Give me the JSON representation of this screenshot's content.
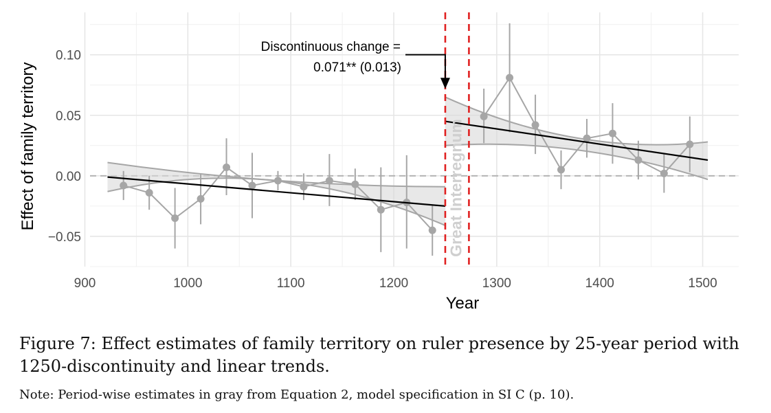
{
  "chart_data": {
    "type": "line",
    "xlabel": "Year",
    "ylabel": "Effect of family territory",
    "xlim": [
      905,
      1535
    ],
    "ylim": [
      -0.075,
      0.135
    ],
    "x_ticks": [
      900,
      1000,
      1100,
      1200,
      1300,
      1400,
      1500
    ],
    "x_tick_labels": [
      "900",
      "1000",
      "1100",
      "1200",
      "1300",
      "1400",
      "1500"
    ],
    "y_ticks": [
      -0.05,
      0.0,
      0.05,
      0.1
    ],
    "y_tick_labels": [
      "−0.05",
      "0.00",
      "0.05",
      "0.10"
    ],
    "grid": true,
    "zero_line": {
      "y": 0,
      "style": "dashed",
      "color": "#b3b3b3"
    },
    "period_estimates": {
      "color": "#a6a6a6",
      "points": [
        {
          "x": 937.5,
          "y": -0.008,
          "lo": -0.02,
          "hi": 0.004
        },
        {
          "x": 962.5,
          "y": -0.014,
          "lo": -0.028,
          "hi": 0.0
        },
        {
          "x": 987.5,
          "y": -0.035,
          "lo": -0.06,
          "hi": -0.01
        },
        {
          "x": 1012.5,
          "y": -0.019,
          "lo": -0.04,
          "hi": 0.002
        },
        {
          "x": 1037.5,
          "y": 0.007,
          "lo": -0.016,
          "hi": 0.031
        },
        {
          "x": 1062.5,
          "y": -0.008,
          "lo": -0.035,
          "hi": 0.019
        },
        {
          "x": 1087.5,
          "y": -0.004,
          "lo": -0.012,
          "hi": 0.004
        },
        {
          "x": 1112.5,
          "y": -0.009,
          "lo": -0.02,
          "hi": 0.002
        },
        {
          "x": 1137.5,
          "y": -0.004,
          "lo": -0.025,
          "hi": 0.018
        },
        {
          "x": 1162.5,
          "y": -0.007,
          "lo": -0.02,
          "hi": 0.006
        },
        {
          "x": 1187.5,
          "y": -0.028,
          "lo": -0.063,
          "hi": 0.007
        },
        {
          "x": 1212.5,
          "y": -0.022,
          "lo": -0.06,
          "hi": 0.017
        },
        {
          "x": 1237.5,
          "y": -0.045,
          "lo": -0.066,
          "hi": -0.024
        },
        {
          "x": 1287.5,
          "y": 0.049,
          "lo": 0.027,
          "hi": 0.072
        },
        {
          "x": 1312.5,
          "y": 0.081,
          "lo": 0.036,
          "hi": 0.126
        },
        {
          "x": 1337.5,
          "y": 0.042,
          "lo": 0.018,
          "hi": 0.067
        },
        {
          "x": 1362.5,
          "y": 0.005,
          "lo": -0.011,
          "hi": 0.021
        },
        {
          "x": 1387.5,
          "y": 0.031,
          "lo": 0.015,
          "hi": 0.047
        },
        {
          "x": 1412.5,
          "y": 0.035,
          "lo": 0.01,
          "hi": 0.06
        },
        {
          "x": 1437.5,
          "y": 0.013,
          "lo": -0.003,
          "hi": 0.029
        },
        {
          "x": 1462.5,
          "y": 0.002,
          "lo": -0.014,
          "hi": 0.018
        },
        {
          "x": 1487.5,
          "y": 0.026,
          "lo": 0.003,
          "hi": 0.049
        }
      ]
    },
    "trends": [
      {
        "x_start": 922,
        "x_end": 1250,
        "y_start": -0.001,
        "y_end": -0.025,
        "band": [
          {
            "x": 922,
            "lo": -0.013,
            "hi": 0.011
          },
          {
            "x": 1150,
            "lo": -0.013,
            "hi": -0.007
          },
          {
            "x": 1250,
            "lo": -0.041,
            "hi": -0.009
          }
        ]
      },
      {
        "x_start": 1250,
        "x_end": 1505,
        "y_start": 0.045,
        "y_end": 0.013,
        "band": [
          {
            "x": 1250,
            "lo": 0.025,
            "hi": 0.065
          },
          {
            "x": 1350,
            "lo": 0.024,
            "hi": 0.036
          },
          {
            "x": 1505,
            "lo": -0.003,
            "hi": 0.028
          }
        ]
      }
    ],
    "reference_lines": [
      {
        "x": 1250,
        "style": "dashed",
        "color": "#e02020"
      },
      {
        "x": 1273,
        "style": "dashed",
        "color": "#e02020"
      }
    ],
    "era_label": {
      "text": "Great Interregnum",
      "x": 1261.5,
      "y": -0.01
    },
    "annotation": {
      "line1": "Discontinuous change =",
      "line2": "0.071** (0.013)",
      "arrow_to": {
        "x": 1250,
        "y": 0.073
      },
      "corner": {
        "x": 1250,
        "y": 0.1
      }
    }
  },
  "caption": "Figure 7: Effect estimates of family territory on ruler presence by 25-year period with 1250-discontinuity and linear trends.",
  "note": "Note: Period-wise estimates in gray from Equation 2, model specification in SI C (p. 10)."
}
